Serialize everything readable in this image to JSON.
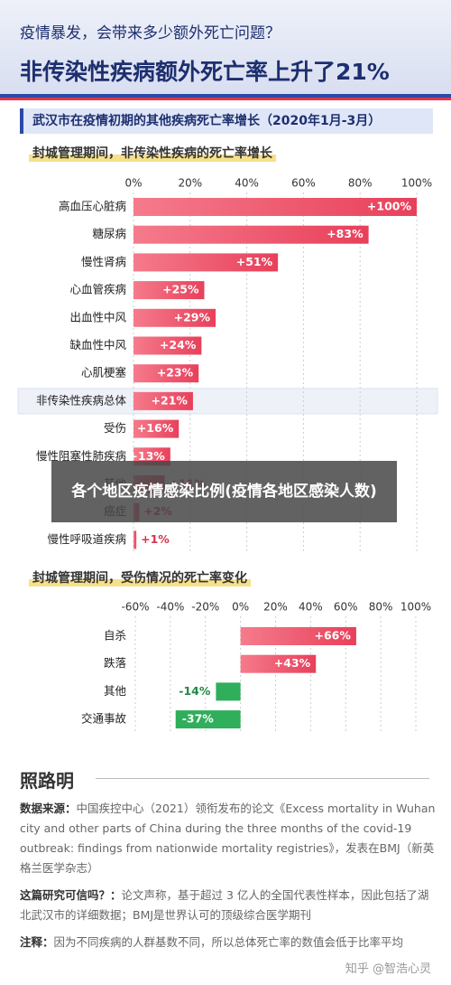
{
  "header": {
    "question": "疫情暴发，会带来多少额外死亡问题？",
    "headline": "非传染性疾病额外死亡率上升了21%"
  },
  "section_title": "武汉市在疫情初期的其他疾病死亡率增长（2020年1月-3月）",
  "chart_data": [
    {
      "type": "bar",
      "orientation": "horizontal",
      "subtitle": "封城管理期间，非传染性疾病的死亡率增长",
      "categories": [
        "高血压心脏病",
        "糖尿病",
        "慢性肾病",
        "心血管疾病",
        "出血性中风",
        "缺血性中风",
        "心肌梗塞",
        "非传染性疾病总体",
        "受伤",
        "慢性阻塞性肺疾病",
        "其他",
        "癌症",
        "慢性呼吸道疾病"
      ],
      "values": [
        100,
        83,
        51,
        25,
        29,
        24,
        23,
        21,
        16,
        13,
        11,
        2,
        1
      ],
      "value_labels": [
        "+100%",
        "+83%",
        "+51%",
        "+25%",
        "+29%",
        "+24%",
        "+23%",
        "+21%",
        "+16%",
        "+13%",
        "+11%",
        "+2%",
        "+1%"
      ],
      "xlim": [
        0,
        100
      ],
      "xticks": [
        {
          "value": 0,
          "label": "0%"
        },
        {
          "value": 20,
          "label": "20%"
        },
        {
          "value": 40,
          "label": "40%"
        },
        {
          "value": 60,
          "label": "60%"
        },
        {
          "value": 80,
          "label": "80%"
        },
        {
          "value": 100,
          "label": "100%"
        }
      ],
      "color": "#ec4a63",
      "negative_color": "#2fae5b",
      "grid": true,
      "highlight_category": "非传染性疾病总体"
    },
    {
      "type": "bar",
      "orientation": "horizontal",
      "subtitle": "封城管理期间，受伤情况的死亡率变化",
      "categories": [
        "自杀",
        "跌落",
        "其他",
        "交通事故"
      ],
      "values": [
        66,
        43,
        -14,
        -37
      ],
      "value_labels": [
        "+66%",
        "+43%",
        "-14%",
        "-37%"
      ],
      "xlim": [
        -60,
        100
      ],
      "xticks": [
        {
          "value": -60,
          "label": "-60%"
        },
        {
          "value": -40,
          "label": "-40%"
        },
        {
          "value": -20,
          "label": "-20%"
        },
        {
          "value": 0,
          "label": "0%"
        },
        {
          "value": 20,
          "label": "20%"
        },
        {
          "value": 40,
          "label": "40%"
        },
        {
          "value": 60,
          "label": "60%"
        },
        {
          "value": 80,
          "label": "80%"
        },
        {
          "value": 100,
          "label": "100%"
        }
      ],
      "color": "#ec4a63",
      "negative_color": "#2fae5b",
      "grid": true
    }
  ],
  "overlay_text": "各个地区疫情感染比例(疫情各地区感染人数)",
  "footer": {
    "logo": "照路明",
    "notes": [
      {
        "label": "数据来源：",
        "text": "中国疾控中心（2021）领衔发布的论文《Excess mortality in Wuhan city and other parts of China during the three months of the covid-19 outbreak: findings from nationwide mortality registries》，发表在BMJ（新英格兰医学杂志）"
      },
      {
        "label": "这篇研究可信吗？：",
        "text": "论文声称，基于超过 3 亿人的全国代表性样本，因此包括了湖北武汉市的详细数据；BMJ是世界认可的顶级综合医学期刊"
      },
      {
        "label": "注释：",
        "text": "因为不同疾病的人群基数不同，所以总体死亡率的数值会低于比率平均"
      }
    ],
    "watermark": "知乎 @智浩心灵"
  }
}
